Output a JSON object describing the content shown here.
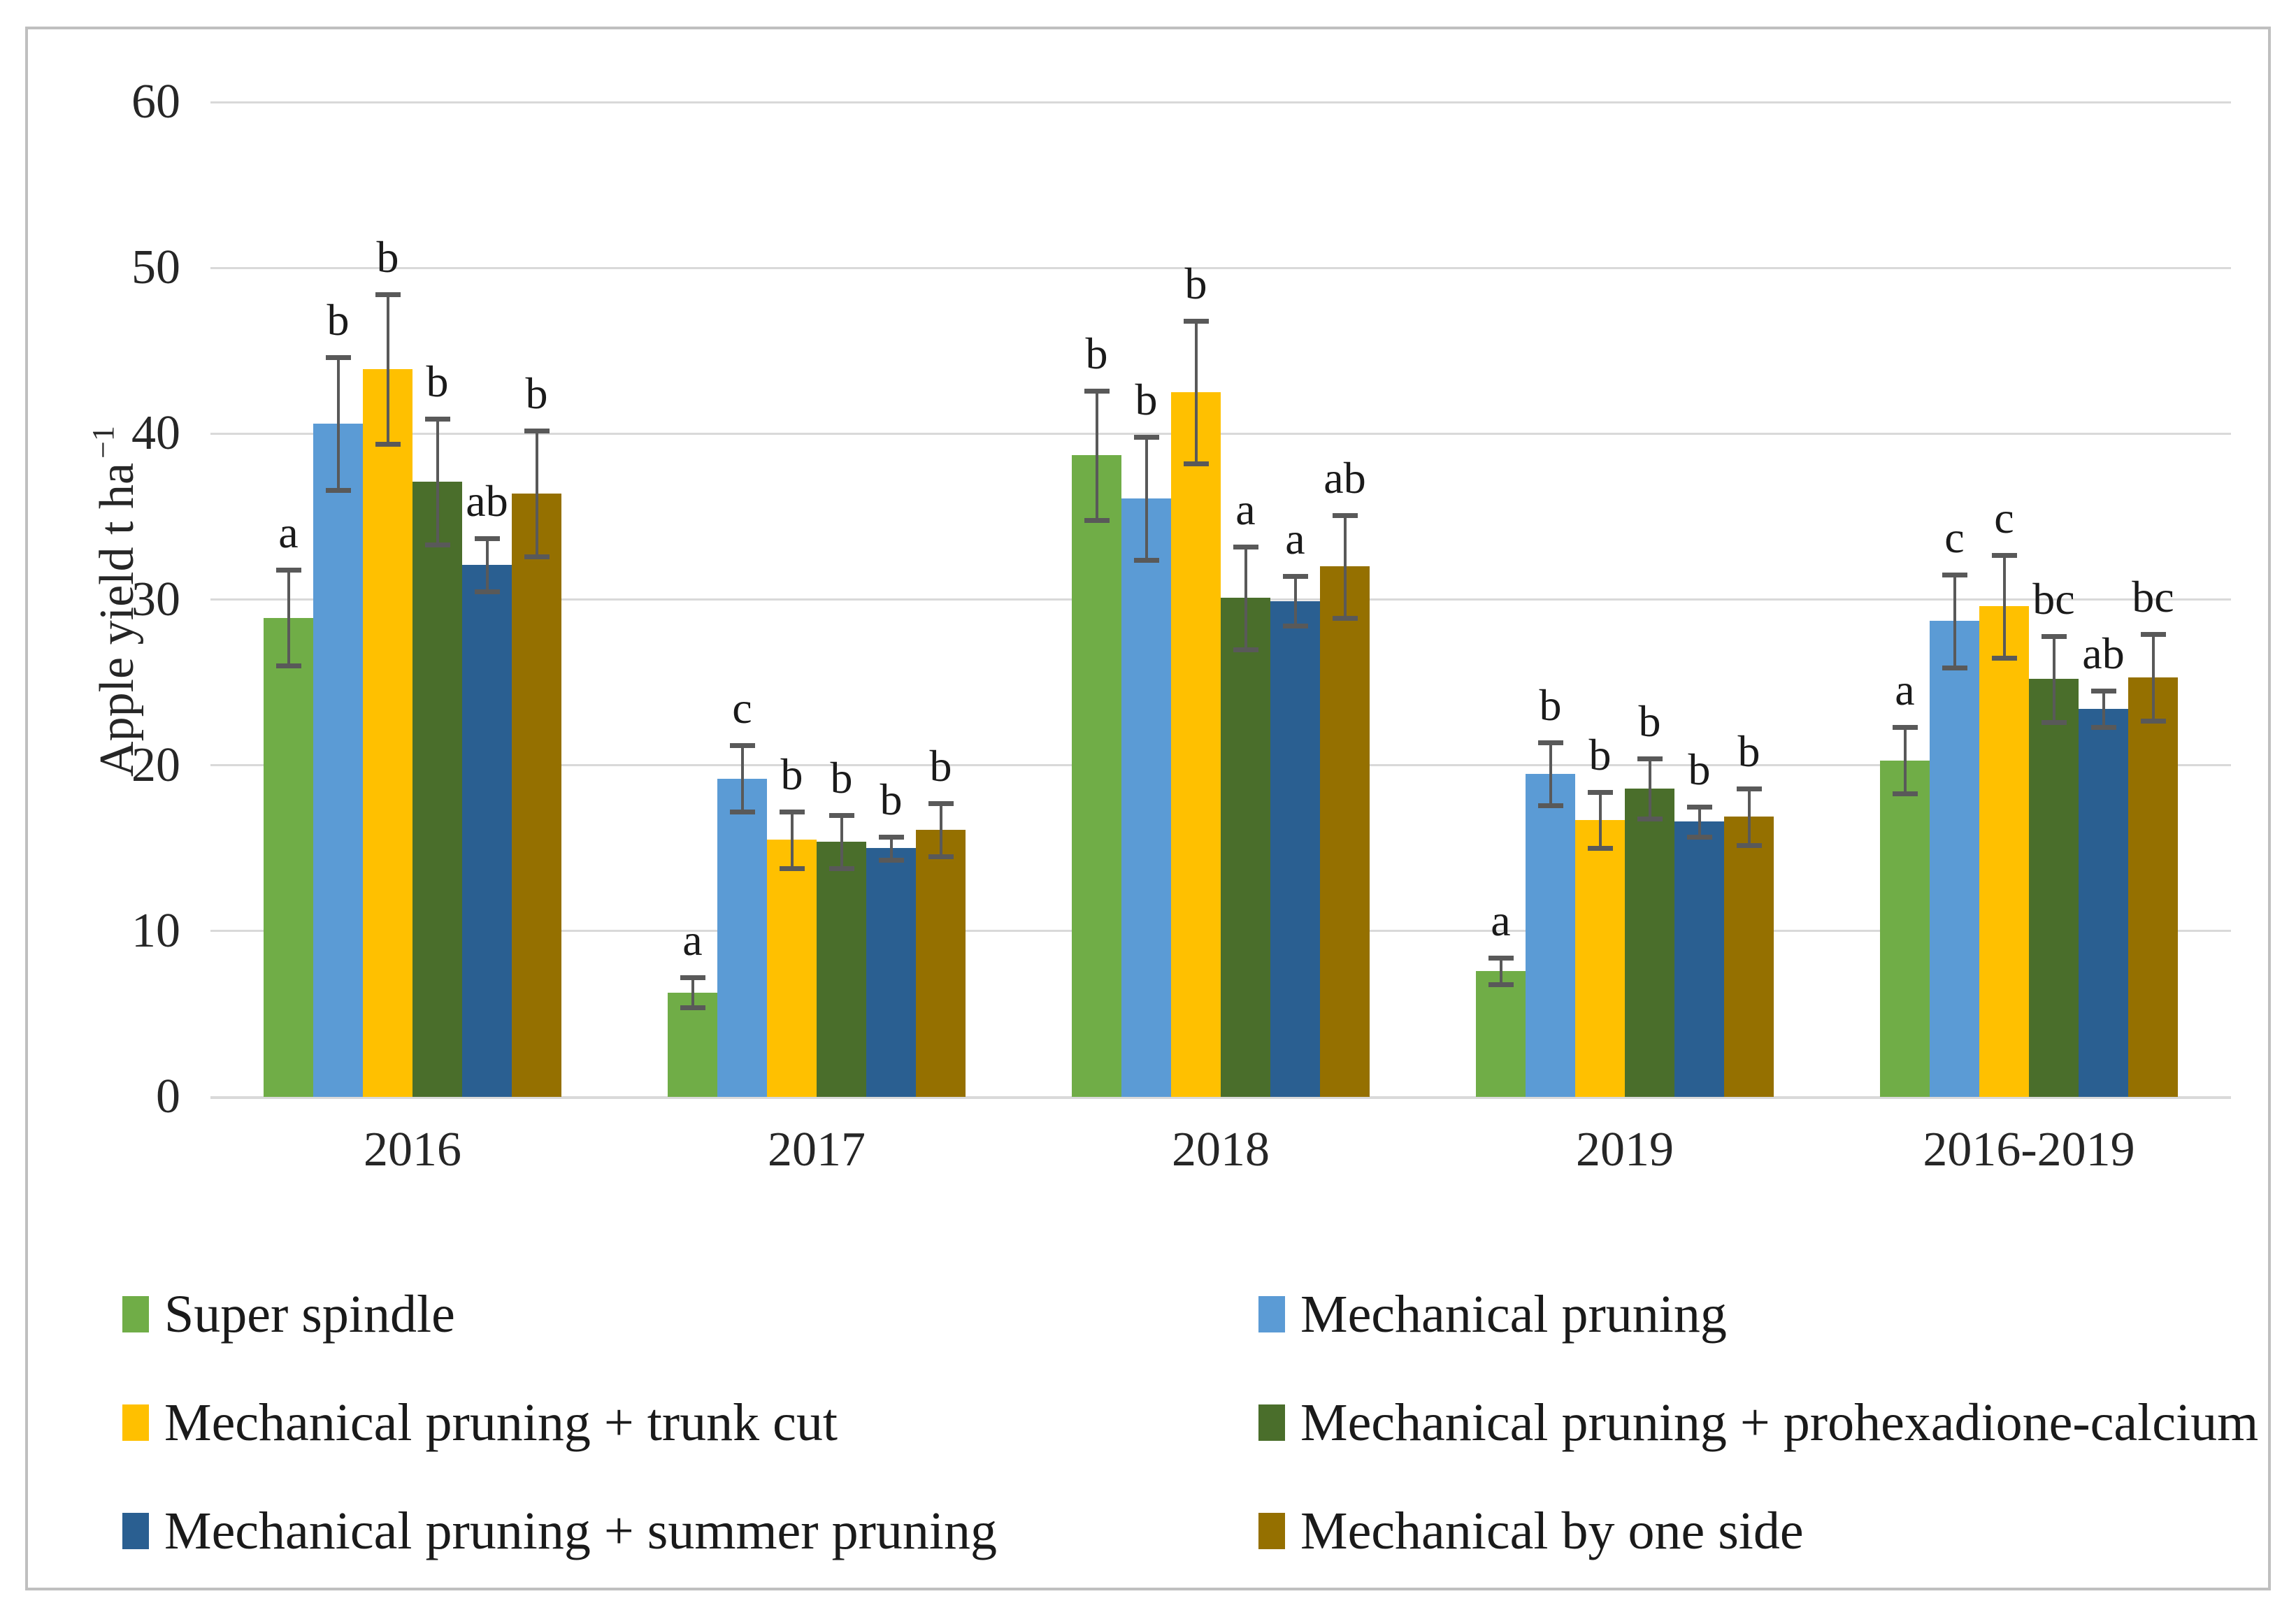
{
  "chart_data": {
    "type": "bar",
    "title": "",
    "ylabel": {
      "text": "Apple yield t ha",
      "sup": "−1"
    },
    "ylim": [
      0,
      60
    ],
    "yticks": [
      0,
      10,
      20,
      30,
      40,
      50,
      60
    ],
    "grid": true,
    "legend_position": "bottom-two-columns",
    "categories": [
      "2016",
      "2017",
      "2018",
      "2019",
      "2016-2019"
    ],
    "series": [
      {
        "name": "Super spindle",
        "color": "#70AD47",
        "values": [
          28.9,
          6.3,
          38.7,
          7.6,
          20.3
        ],
        "errors": [
          2.9,
          0.9,
          3.9,
          0.8,
          2.0
        ],
        "letters": [
          "a",
          "a",
          "b",
          "a",
          "a"
        ]
      },
      {
        "name": "Mechanical pruning",
        "color": "#5B9BD5",
        "values": [
          40.6,
          19.2,
          36.1,
          19.5,
          28.7
        ],
        "errors": [
          4.0,
          2.0,
          3.7,
          1.9,
          2.8
        ],
        "letters": [
          "b",
          "c",
          "b",
          "b",
          "c"
        ]
      },
      {
        "name": "Mechanical pruning + trunk cut",
        "color": "#FFC000",
        "values": [
          43.9,
          15.5,
          42.5,
          16.7,
          29.6
        ],
        "errors": [
          4.5,
          1.7,
          4.3,
          1.7,
          3.1
        ],
        "letters": [
          "b",
          "b",
          "b",
          "b",
          "c"
        ]
      },
      {
        "name": "Mechanical pruning + prohexadione-calcium",
        "color": "#4A6E2B",
        "values": [
          37.1,
          15.4,
          30.1,
          18.6,
          25.2
        ],
        "errors": [
          3.8,
          1.6,
          3.1,
          1.8,
          2.6
        ],
        "letters": [
          "b",
          "b",
          "a",
          "b",
          "bc"
        ]
      },
      {
        "name": "Mechanical pruning + summer pruning",
        "color": "#2A5F91",
        "values": [
          32.1,
          15.0,
          29.9,
          16.6,
          23.4
        ],
        "errors": [
          1.6,
          0.7,
          1.5,
          0.9,
          1.1
        ],
        "letters": [
          "ab",
          "b",
          "a",
          "b",
          "ab"
        ]
      },
      {
        "name": "Mechanical by one side",
        "color": "#957000",
        "values": [
          36.4,
          16.1,
          32.0,
          16.9,
          25.3
        ],
        "errors": [
          3.8,
          1.6,
          3.1,
          1.7,
          2.6
        ],
        "letters": [
          "b",
          "b",
          "ab",
          "b",
          "bc"
        ]
      }
    ],
    "legend_columns": [
      [
        0,
        2,
        4
      ],
      [
        1,
        3,
        5
      ]
    ]
  }
}
